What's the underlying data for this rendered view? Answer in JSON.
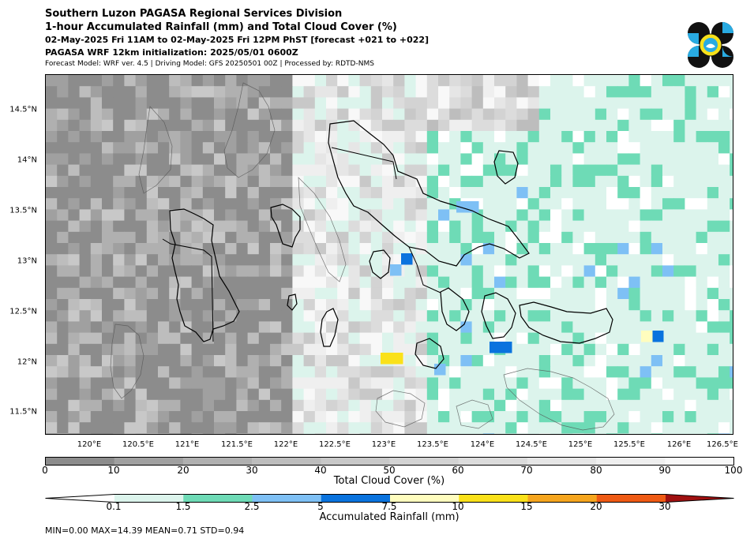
{
  "header": {
    "title": "Southern Luzon PAGASA Regional Services Division",
    "subtitle": "1-hour Accumulated Rainfall (mm) and Total Cloud Cover (%)",
    "period": "02-May-2025 Fri 11AM to 02-May-2025 Fri 12PM PhST [forecast +021 to +022]",
    "init": "PAGASA WRF 12km initialization: 2025/05/01 0600Z",
    "model": "Forecast Model: WRF ver. 4.5 | Driving Model: GFS 20250501 00Z | Processed by: RDTD-NMS"
  },
  "logo": {
    "name": "PAGASA seal",
    "colors": [
      "#111111",
      "#29abe2",
      "#f7e11a"
    ]
  },
  "map": {
    "lat_ticks": [
      "14.5°N",
      "14°N",
      "13.5°N",
      "13°N",
      "12.5°N",
      "12°N",
      "11.5°N"
    ],
    "lon_ticks": [
      "120°E",
      "120.5°E",
      "121°E",
      "121.5°E",
      "122°E",
      "122.5°E",
      "123°E",
      "123.5°E",
      "124°E",
      "124.5°E",
      "125°E",
      "125.5°E",
      "126°E",
      "126.5°E"
    ],
    "extent": {
      "lon_min": 119.55,
      "lon_max": 126.55,
      "lat_min": 11.28,
      "lat_max": 14.85
    }
  },
  "cloud_colorbar": {
    "label": "Total Cloud Cover (%)",
    "ticks": [
      "0",
      "10",
      "20",
      "30",
      "40",
      "50",
      "60",
      "70",
      "80",
      "90",
      "100"
    ],
    "colors": [
      "#8c8c8c",
      "#a0a0a0",
      "#b0b0b0",
      "#bdbdbd",
      "#c8c8c8",
      "#d3d3d3",
      "#dcdcdc",
      "#e6e6e6",
      "#efefef",
      "#f8f8f8"
    ]
  },
  "rain_colorbar": {
    "label": "Accumulated Rainfall (mm)",
    "ticks": [
      "0.1",
      "1.5",
      "2.5",
      "5",
      "7.5",
      "10",
      "15",
      "20",
      "30"
    ],
    "colors": [
      "#ffffff",
      "#dcf4ec",
      "#6edbb6",
      "#7ec0f5",
      "#0a73de",
      "#fffdbe",
      "#fae11a",
      "#f5a51e",
      "#ee5a14",
      "#c01818",
      "#a01010"
    ]
  },
  "stats": "MIN=0.00   MAX=14.39   MEAN=0.71   STD=0.94"
}
